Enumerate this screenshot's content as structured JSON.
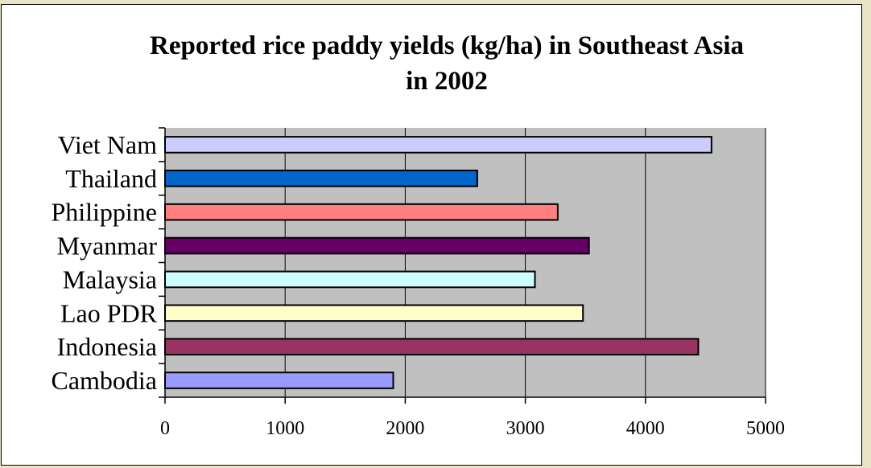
{
  "chart_data": {
    "type": "bar",
    "orientation": "horizontal",
    "title_lines": [
      "Reported rice paddy yields (kg/ha) in Southeast Asia",
      "in 2002"
    ],
    "xlabel": "",
    "ylabel": "",
    "categories": [
      "Cambodia",
      "Indonesia",
      "Lao PDR",
      "Malaysia",
      "Myanmar",
      "Philippine",
      "Thailand",
      "Viet Nam"
    ],
    "values": [
      1900,
      4440,
      3480,
      3080,
      3530,
      3270,
      2600,
      4550
    ],
    "bar_colors": [
      "#9999ff",
      "#993366",
      "#ffffcc",
      "#ccffff",
      "#660066",
      "#ff8080",
      "#0066cc",
      "#ccccff"
    ],
    "xlim": [
      0,
      5000
    ],
    "xticks": [
      0,
      1000,
      2000,
      3000,
      4000,
      5000
    ],
    "grid": "vertical",
    "legend": "none",
    "plot_background": "#c0c0c0"
  }
}
